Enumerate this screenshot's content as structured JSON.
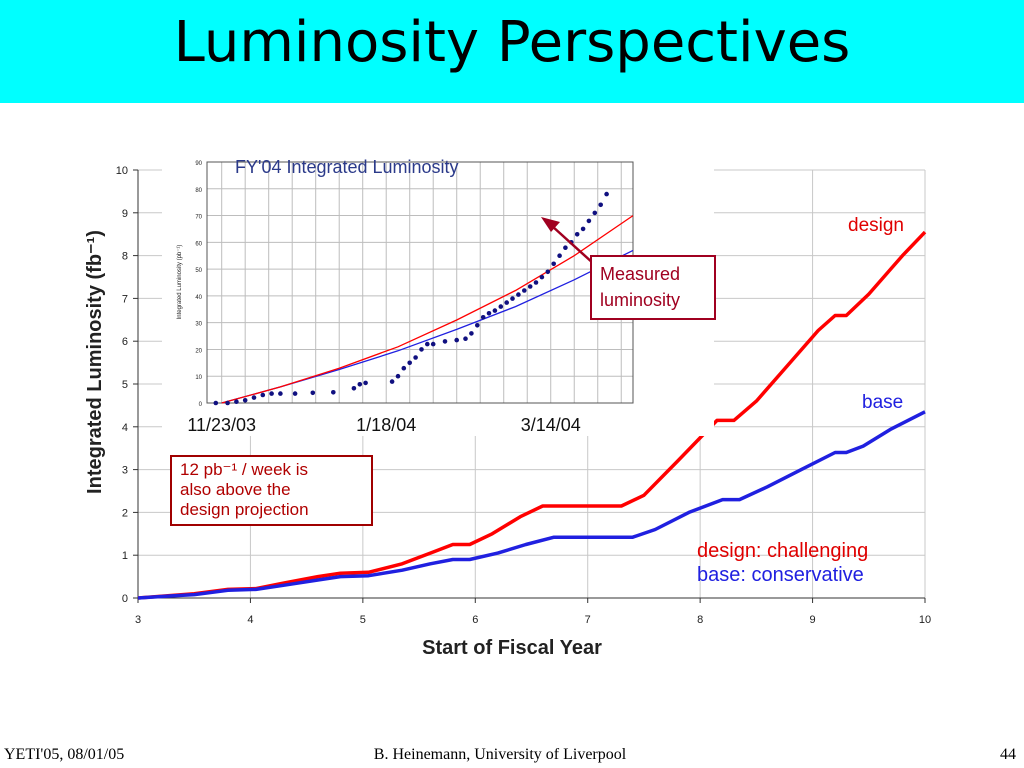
{
  "slide": {
    "title": "Luminosity Perspectives",
    "footer_left": "YETI'05, 08/01/05",
    "footer_center": "B. Heinemann, University of Liverpool",
    "footer_right": "44"
  },
  "chart_data": [
    {
      "type": "line",
      "xlabel": "Start of Fiscal Year",
      "ylabel": "Integrated Luminosity (fb⁻¹)",
      "xlim": [
        3,
        10
      ],
      "ylim": [
        0,
        10
      ],
      "x_ticks": [
        3,
        4,
        5,
        6,
        7,
        8,
        9,
        10
      ],
      "y_ticks": [
        0,
        1,
        2,
        3,
        4,
        5,
        6,
        7,
        8,
        9,
        10
      ],
      "grid": true,
      "colors": {
        "design": "#ff0000",
        "base": "#2020e0"
      },
      "series": [
        {
          "name": "design",
          "x": [
            3.0,
            3.25,
            3.5,
            3.8,
            4.05,
            4.3,
            4.6,
            4.8,
            5.05,
            5.35,
            5.6,
            5.8,
            5.95,
            6.15,
            6.4,
            6.6,
            7.0,
            7.3,
            7.5,
            7.8,
            8.15,
            8.3,
            8.5,
            8.8,
            9.05,
            9.2,
            9.3,
            9.5,
            9.8,
            10.0
          ],
          "values": [
            0.0,
            0.05,
            0.1,
            0.2,
            0.22,
            0.35,
            0.5,
            0.58,
            0.6,
            0.8,
            1.05,
            1.25,
            1.25,
            1.5,
            1.9,
            2.15,
            2.15,
            2.15,
            2.4,
            3.2,
            4.15,
            4.15,
            4.6,
            5.5,
            6.25,
            6.6,
            6.6,
            7.1,
            8.0,
            8.55
          ]
        },
        {
          "name": "base",
          "x": [
            3.0,
            3.3,
            3.5,
            3.8,
            4.05,
            4.3,
            4.6,
            4.8,
            5.05,
            5.35,
            5.6,
            5.8,
            5.95,
            6.2,
            6.45,
            6.7,
            7.05,
            7.4,
            7.6,
            7.9,
            8.2,
            8.35,
            8.6,
            8.9,
            9.2,
            9.3,
            9.45,
            9.7,
            10.0
          ],
          "values": [
            0.0,
            0.05,
            0.08,
            0.18,
            0.2,
            0.3,
            0.42,
            0.5,
            0.52,
            0.65,
            0.8,
            0.9,
            0.9,
            1.05,
            1.25,
            1.42,
            1.42,
            1.42,
            1.6,
            2.0,
            2.3,
            2.3,
            2.6,
            3.0,
            3.4,
            3.4,
            3.55,
            3.95,
            4.35
          ]
        }
      ],
      "annotations": {
        "design_label": "design",
        "base_label": "base",
        "legend_design": "design: challenging",
        "legend_base": "base: conservative",
        "note_lines": [
          "12 pb⁻¹ / week is",
          "also above the",
          "design projection"
        ]
      }
    },
    {
      "type": "scatter",
      "title": "FY'04 Integrated Luminosity",
      "ylabel": "Integrated Luminosity (pb⁻¹)",
      "ylim": [
        0,
        90
      ],
      "y_ticks": [
        0,
        10,
        20,
        30,
        40,
        50,
        60,
        70,
        80,
        90
      ],
      "x_tick_labels": [
        "11/23/03",
        "1/18/04",
        "3/14/04"
      ],
      "x_ticks_days": [
        0,
        56,
        112
      ],
      "xlim_days": [
        -5,
        140
      ],
      "grid": true,
      "colors": {
        "measured": "#101080",
        "design": "#ff0000",
        "base": "#2020e0"
      },
      "measured": {
        "x_days": [
          -2,
          2,
          5,
          8,
          11,
          14,
          17,
          20,
          25,
          31,
          38,
          45,
          47,
          49,
          58,
          60,
          62,
          64,
          66,
          68,
          70,
          72,
          76,
          80,
          83,
          85,
          87,
          89,
          91,
          93,
          95,
          97,
          99,
          101,
          103,
          105,
          107,
          109,
          111,
          113,
          115,
          117,
          119,
          121,
          123,
          125,
          127,
          129,
          131
        ],
        "values": [
          0,
          0,
          0.5,
          1,
          2,
          3,
          3.5,
          3.5,
          3.5,
          3.8,
          4,
          5.5,
          7,
          7.5,
          8,
          10,
          13,
          15,
          17,
          20,
          22,
          22,
          23,
          23.5,
          24,
          26,
          29,
          32,
          33.5,
          34.5,
          36,
          37.5,
          39,
          40.5,
          42,
          43.5,
          45,
          47,
          49,
          52,
          55,
          58,
          60,
          63,
          65,
          68,
          71,
          74,
          78
        ]
      },
      "design_projection": {
        "x_days": [
          0,
          20,
          40,
          60,
          80,
          100,
          120,
          140
        ],
        "values": [
          0,
          6,
          13,
          21,
          31,
          42,
          55,
          70
        ]
      },
      "base_projection": {
        "x_days": [
          0,
          20,
          40,
          60,
          80,
          100,
          120,
          140
        ],
        "values": [
          0,
          6,
          12.5,
          19.5,
          27.5,
          36,
          46,
          57
        ]
      },
      "callout": [
        "Measured",
        "luminosity"
      ]
    }
  ]
}
